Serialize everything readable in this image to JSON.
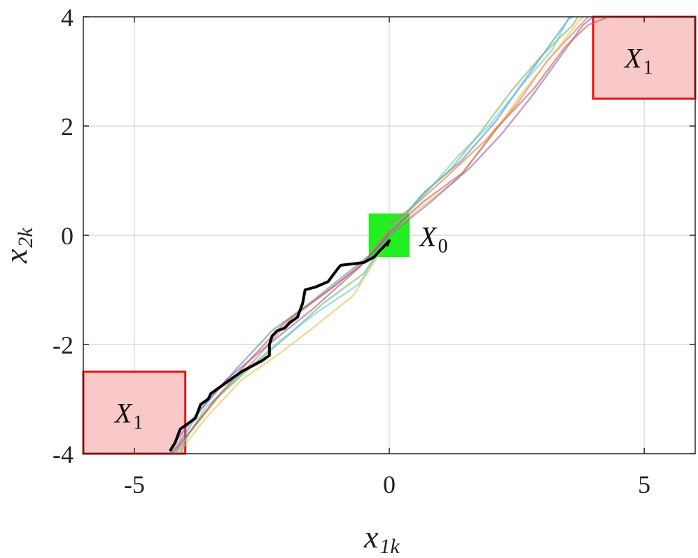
{
  "chart_data": {
    "type": "line",
    "xlim": [
      -6,
      6
    ],
    "ylim": [
      -4,
      4
    ],
    "xticks": [
      -5,
      0,
      5
    ],
    "yticks": [
      -4,
      -2,
      0,
      2,
      4
    ],
    "xtick_labels": [
      "-5",
      "0",
      "5"
    ],
    "ytick_labels": [
      "-4",
      "-2",
      "0",
      "2",
      "4"
    ],
    "grid": true,
    "xlabel": {
      "base": "x",
      "sub": "1k"
    },
    "ylabel": {
      "base": "x",
      "sub": "2k"
    },
    "regions": [
      {
        "label": "X",
        "sub": "0",
        "x": [
          -0.4,
          0.4
        ],
        "y": [
          -0.4,
          0.4
        ],
        "fill": "#22ee22",
        "stroke": "none"
      },
      {
        "label": "X",
        "sub": "1",
        "x": [
          4.0,
          6.0
        ],
        "y": [
          2.5,
          4.0
        ],
        "fill": "#f9c8c8",
        "stroke": "#ee1111"
      },
      {
        "label": "X",
        "sub": "1",
        "x": [
          -6.0,
          -4.0
        ],
        "y": [
          -4.0,
          -2.5
        ],
        "fill": "#f9c8c8",
        "stroke": "#ee1111"
      }
    ],
    "highlight_trajectory": {
      "color": "#000000",
      "points": [
        [
          -0.05,
          -0.2
        ],
        [
          0.0,
          -0.1
        ],
        [
          -0.15,
          -0.25
        ],
        [
          -0.05,
          -0.15
        ],
        [
          -0.2,
          -0.3
        ],
        [
          -0.3,
          -0.4
        ],
        [
          -0.5,
          -0.5
        ],
        [
          -0.95,
          -0.55
        ],
        [
          -1.0,
          -0.6
        ],
        [
          -1.2,
          -0.85
        ],
        [
          -1.45,
          -0.95
        ],
        [
          -1.65,
          -1.0
        ],
        [
          -1.7,
          -1.25
        ],
        [
          -1.8,
          -1.5
        ],
        [
          -1.95,
          -1.6
        ],
        [
          -2.05,
          -1.7
        ],
        [
          -2.2,
          -1.75
        ],
        [
          -2.3,
          -1.85
        ],
        [
          -2.35,
          -2.0
        ],
        [
          -2.35,
          -2.2
        ],
        [
          -2.5,
          -2.3
        ],
        [
          -2.9,
          -2.5
        ],
        [
          -3.35,
          -2.8
        ],
        [
          -3.5,
          -2.9
        ],
        [
          -3.55,
          -3.0
        ],
        [
          -3.7,
          -3.1
        ],
        [
          -3.8,
          -3.35
        ],
        [
          -3.95,
          -3.45
        ],
        [
          -4.1,
          -3.55
        ],
        [
          -4.2,
          -3.8
        ],
        [
          -4.3,
          -3.95
        ]
      ]
    },
    "trajectories": [
      {
        "color": "#4a90c8",
        "points": [
          [
            0.0,
            0.0
          ],
          [
            -0.3,
            -0.3
          ],
          [
            -0.9,
            -0.75
          ],
          [
            -1.5,
            -1.2
          ],
          [
            -2.3,
            -1.75
          ],
          [
            -3.0,
            -2.45
          ],
          [
            -3.7,
            -3.2
          ],
          [
            -4.15,
            -3.85
          ],
          [
            -4.3,
            -4.0
          ],
          [
            0.0,
            0.0
          ],
          [
            0.7,
            0.8
          ],
          [
            1.4,
            1.35
          ],
          [
            2.1,
            2.1
          ],
          [
            2.7,
            2.9
          ],
          [
            3.2,
            3.55
          ],
          [
            3.55,
            4.0
          ]
        ]
      },
      {
        "color": "#e3784d",
        "points": [
          [
            0.0,
            0.1
          ],
          [
            -0.45,
            -0.45
          ],
          [
            -1.1,
            -0.95
          ],
          [
            -1.9,
            -1.5
          ],
          [
            -2.6,
            -2.25
          ],
          [
            -3.3,
            -2.9
          ],
          [
            -3.9,
            -3.6
          ],
          [
            -4.2,
            -4.0
          ],
          [
            0.0,
            0.2
          ],
          [
            0.5,
            0.55
          ],
          [
            1.1,
            1.05
          ],
          [
            1.9,
            1.75
          ],
          [
            2.5,
            2.4
          ],
          [
            3.1,
            3.2
          ],
          [
            3.6,
            3.7
          ],
          [
            3.9,
            4.0
          ]
        ]
      },
      {
        "color": "#e8c050",
        "points": [
          [
            -0.1,
            -0.2
          ],
          [
            -0.7,
            -1.1
          ],
          [
            -1.5,
            -1.7
          ],
          [
            -2.2,
            -2.2
          ],
          [
            -2.9,
            -2.65
          ],
          [
            -3.6,
            -3.35
          ],
          [
            -4.1,
            -3.95
          ],
          [
            0.0,
            0.0
          ],
          [
            0.6,
            0.5
          ],
          [
            1.3,
            1.0
          ],
          [
            2.0,
            1.8
          ],
          [
            2.6,
            2.6
          ],
          [
            3.2,
            3.3
          ],
          [
            3.7,
            3.9
          ],
          [
            3.8,
            4.0
          ]
        ]
      },
      {
        "color": "#9c5ab0",
        "points": [
          [
            0.0,
            0.0
          ],
          [
            -0.6,
            -0.6
          ],
          [
            -1.5,
            -1.35
          ],
          [
            -2.3,
            -1.95
          ],
          [
            -3.2,
            -2.65
          ],
          [
            -3.8,
            -3.3
          ],
          [
            -4.25,
            -3.85
          ],
          [
            -4.3,
            -4.0
          ],
          [
            0.0,
            0.0
          ],
          [
            0.8,
            0.6
          ],
          [
            1.6,
            1.25
          ],
          [
            2.2,
            1.85
          ],
          [
            2.8,
            2.55
          ],
          [
            3.3,
            3.2
          ],
          [
            3.8,
            3.85
          ],
          [
            4.0,
            4.0
          ]
        ]
      },
      {
        "color": "#78b84a",
        "points": [
          [
            0.05,
            0.05
          ],
          [
            -0.5,
            -0.7
          ],
          [
            -1.3,
            -1.25
          ],
          [
            -2.0,
            -1.85
          ],
          [
            -2.7,
            -2.4
          ],
          [
            -3.4,
            -3.0
          ],
          [
            -3.95,
            -3.65
          ],
          [
            -4.1,
            -4.0
          ],
          [
            0.05,
            0.1
          ],
          [
            0.6,
            0.7
          ],
          [
            1.2,
            1.2
          ],
          [
            1.8,
            1.9
          ],
          [
            2.4,
            2.65
          ],
          [
            3.0,
            3.3
          ],
          [
            3.6,
            3.85
          ],
          [
            3.7,
            4.0
          ]
        ]
      },
      {
        "color": "#5fc8e8",
        "points": [
          [
            -0.1,
            -0.15
          ],
          [
            -0.6,
            -0.9
          ],
          [
            -1.4,
            -1.4
          ],
          [
            -2.1,
            -1.9
          ],
          [
            -2.9,
            -2.55
          ],
          [
            -3.6,
            -3.15
          ],
          [
            -4.0,
            -3.75
          ],
          [
            -4.2,
            -4.0
          ],
          [
            0.0,
            0.05
          ],
          [
            0.7,
            0.75
          ],
          [
            1.35,
            1.45
          ],
          [
            1.95,
            2.0
          ],
          [
            2.6,
            2.75
          ],
          [
            3.2,
            3.4
          ],
          [
            3.5,
            3.95
          ],
          [
            3.6,
            4.0
          ]
        ]
      },
      {
        "color": "#c85a4a",
        "points": [
          [
            0.0,
            0.05
          ],
          [
            -0.55,
            -0.55
          ],
          [
            -1.25,
            -1.05
          ],
          [
            -2.05,
            -1.6
          ],
          [
            -2.8,
            -2.35
          ],
          [
            -3.45,
            -3.05
          ],
          [
            -4.0,
            -3.7
          ],
          [
            -4.25,
            -4.0
          ],
          [
            0.0,
            0.05
          ],
          [
            0.65,
            0.6
          ],
          [
            1.45,
            1.15
          ],
          [
            2.1,
            1.95
          ],
          [
            2.85,
            2.7
          ],
          [
            3.45,
            3.45
          ],
          [
            3.9,
            3.85
          ],
          [
            4.3,
            4.0
          ]
        ]
      }
    ]
  }
}
